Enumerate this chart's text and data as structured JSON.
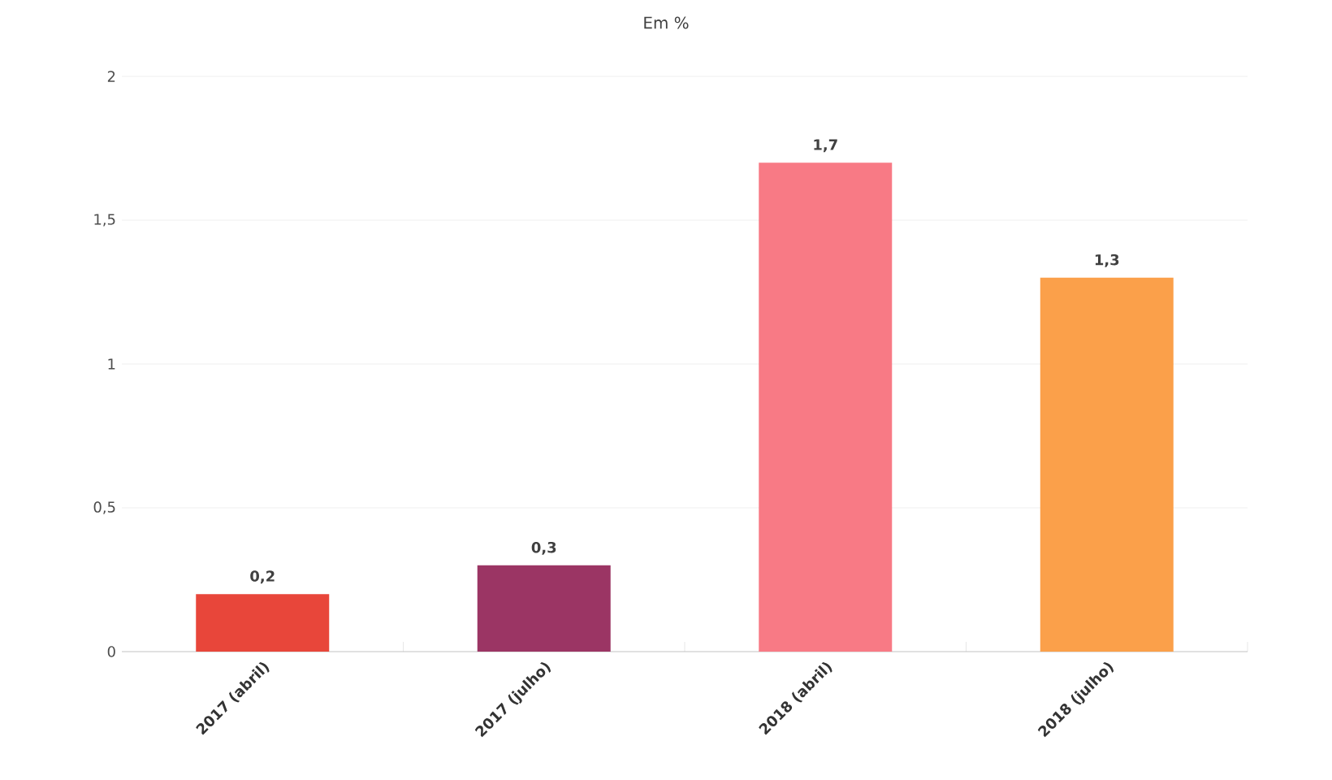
{
  "chart_data": {
    "type": "bar",
    "title": "Em %",
    "categories": [
      "2017 (abril)",
      "2017 (julho)",
      "2018 (abril)",
      "2018 (julho)"
    ],
    "values": [
      0.2,
      0.3,
      1.7,
      1.3
    ],
    "colors": [
      "#e8463a",
      "#9b3564",
      "#f87a85",
      "#fba04a"
    ],
    "value_labels": [
      "0,2",
      "0,3",
      "1,7",
      "1,3"
    ],
    "ylim": [
      0,
      2
    ],
    "yticks": [
      0,
      {
        "value": 0.5,
        "label": "0,5"
      },
      1,
      {
        "value": 1.5,
        "label": "1,5"
      },
      2
    ],
    "grid": "y"
  }
}
